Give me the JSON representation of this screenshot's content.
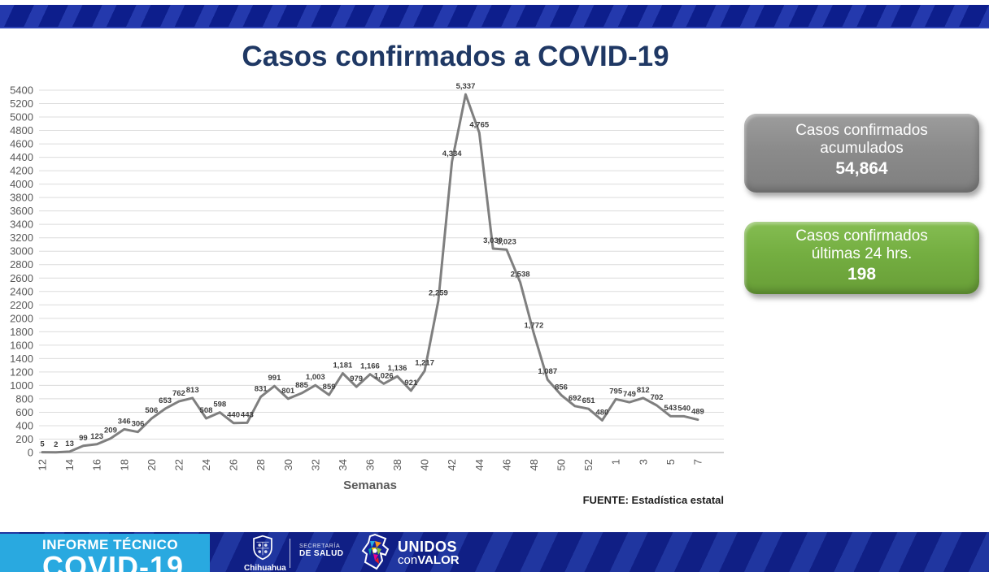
{
  "title": "Casos confirmados a COVID-19",
  "chart_data": {
    "type": "line",
    "title": "Casos confirmados a COVID-19",
    "xlabel": "Semanas",
    "ylabel": "",
    "ylim": [
      0,
      5400
    ],
    "ytick_step": 200,
    "grid": true,
    "line_color": "#7f7f7f",
    "weeks": [
      "12",
      "13",
      "14",
      "15",
      "16",
      "17",
      "18",
      "19",
      "20",
      "21",
      "22",
      "23",
      "24",
      "25",
      "26",
      "27",
      "28",
      "29",
      "30",
      "31",
      "32",
      "33",
      "34",
      "35",
      "36",
      "37",
      "38",
      "39",
      "40",
      "41",
      "42",
      "43",
      "44",
      "45",
      "46",
      "47",
      "48",
      "49",
      "50",
      "51",
      "52",
      "53",
      "1",
      "2",
      "3",
      "4",
      "5",
      "6",
      "7"
    ],
    "visible_x_tick_labels": [
      "12",
      "14",
      "16",
      "18",
      "20",
      "22",
      "24",
      "26",
      "28",
      "30",
      "32",
      "34",
      "36",
      "38",
      "40",
      "42",
      "44",
      "46",
      "48",
      "50",
      "52",
      "1",
      "3",
      "5",
      "7"
    ],
    "values": [
      5,
      2,
      13,
      99,
      123,
      209,
      346,
      306,
      506,
      653,
      762,
      813,
      508,
      598,
      440,
      443,
      831,
      991,
      801,
      885,
      1003,
      859,
      1181,
      979,
      1166,
      1026,
      1136,
      921,
      1217,
      2259,
      4334,
      5337,
      4765,
      3039,
      3023,
      2538,
      1772,
      1087,
      856,
      692,
      651,
      480,
      795,
      749,
      812,
      702,
      543,
      540,
      489
    ]
  },
  "source_note": "FUENTE: Estadística estatal",
  "cards": {
    "accumulated": {
      "line1": "Casos confirmados",
      "line2": "acumulados",
      "value": "54,864",
      "color": "#8b8b8b"
    },
    "last24": {
      "line1": "Casos confirmados",
      "line2": "últimas 24 hrs.",
      "value": "198",
      "color": "#74ae41"
    }
  },
  "footer": {
    "program_line1": "INFORME TÉCNICO",
    "program_line2": "COVID-19",
    "program_box_color": "#29a9e0",
    "state_label": "Chihuahua",
    "ministry_line1": "SECRETARÍA",
    "ministry_line2": "DE SALUD",
    "motto_line1": "UNIDOS",
    "motto_con": "con",
    "motto_valor": "VALOR"
  },
  "colors": {
    "banner_stripe_dark": "#0d1e8c",
    "banner_stripe_light": "#2439ad",
    "title_navy": "#1f3864",
    "grid_gray": "#dcdcdc",
    "axis_text": "#595959"
  }
}
